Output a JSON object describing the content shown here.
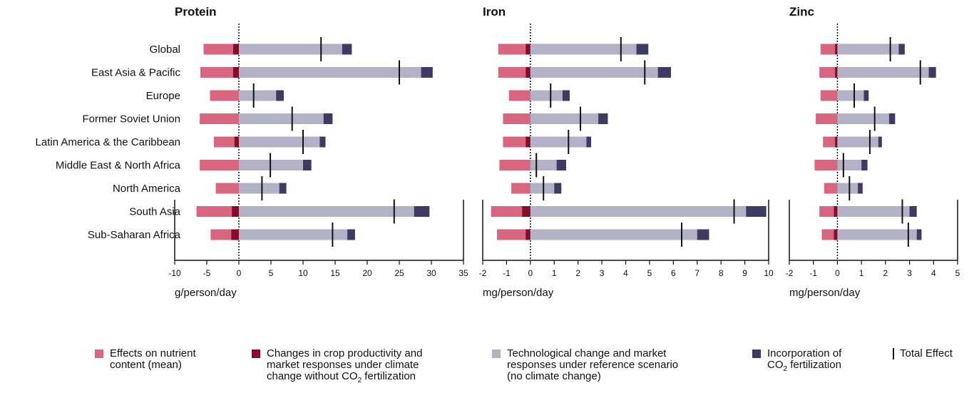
{
  "chart_data": {
    "type": "bar",
    "categories": [
      "Global",
      "East Asia & Pacific",
      "Europe",
      "Former Soviet Union",
      "Latin America & the Caribbean",
      "Middle East & North Africa",
      "North America",
      "South Asia",
      "Sub-Saharan Africa"
    ],
    "colors": {
      "nutrient_effect": "#d9667f",
      "crop_productivity": "#8b0a2a",
      "tech_change": "#b3b1c5",
      "co2": "#3d3a63",
      "total": "#111111"
    },
    "panels": [
      {
        "title": "Protein",
        "xlabel": "g/person/day",
        "xlim": [
          -10,
          35
        ],
        "ticks": [
          -10,
          -5,
          0,
          5,
          10,
          15,
          20,
          25,
          30,
          35
        ],
        "series": [
          {
            "name": "Effects on nutrient content (mean)",
            "values": [
              -4.6,
              -5.1,
              -4.5,
              -6.1,
              -3.2,
              -6.1,
              -3.6,
              -5.5,
              -3.2
            ]
          },
          {
            "name": "Changes in crop productivity and market responses under climate change without CO2 fertilization",
            "values": [
              -0.9,
              -0.9,
              0,
              0,
              -0.7,
              0,
              0,
              -1.1,
              -1.2
            ]
          },
          {
            "name": "Technological change and market responses under reference scenario (no climate change)",
            "values": [
              16.1,
              28.4,
              5.8,
              13.2,
              12.6,
              10.0,
              6.3,
              27.3,
              16.9
            ]
          },
          {
            "name": "Incorporation of CO2 fertilization",
            "values": [
              1.5,
              1.8,
              1.2,
              1.4,
              0.9,
              1.3,
              1.1,
              2.4,
              1.2
            ]
          },
          {
            "name": "Total Effect",
            "values": [
              12.8,
              25.0,
              2.3,
              8.3,
              10.0,
              4.9,
              3.6,
              24.2,
              14.6
            ]
          }
        ]
      },
      {
        "title": "Iron",
        "xlabel": "mg/person/day",
        "xlim": [
          -2,
          10
        ],
        "ticks": [
          -2,
          -1,
          0,
          1,
          2,
          3,
          4,
          5,
          6,
          7,
          8,
          9,
          10
        ],
        "series": [
          {
            "name": "Effects on nutrient content (mean)",
            "values": [
              -1.15,
              -1.15,
              -0.9,
              -1.15,
              -0.95,
              -1.3,
              -0.8,
              -1.3,
              -1.2
            ]
          },
          {
            "name": "Changes in crop productivity and market responses under climate change without CO2 fertilization",
            "values": [
              -0.2,
              -0.2,
              0,
              0,
              -0.2,
              0,
              0,
              -0.35,
              -0.2
            ]
          },
          {
            "name": "Technological change and market responses under reference scenario (no climate change)",
            "values": [
              4.45,
              5.35,
              1.35,
              2.85,
              2.35,
              1.1,
              1.0,
              9.05,
              7.0
            ]
          },
          {
            "name": "Incorporation of CO2 fertilization",
            "values": [
              0.5,
              0.55,
              0.3,
              0.4,
              0.2,
              0.4,
              0.3,
              0.85,
              0.5
            ]
          },
          {
            "name": "Total Effect",
            "values": [
              3.8,
              4.8,
              0.85,
              2.1,
              1.6,
              0.25,
              0.55,
              8.55,
              6.35
            ]
          }
        ]
      },
      {
        "title": "Zinc",
        "xlabel": "mg/person/day",
        "xlim": [
          -2,
          5
        ],
        "ticks": [
          -2,
          -1,
          0,
          1,
          2,
          3,
          4,
          5
        ],
        "series": [
          {
            "name": "Effects on nutrient content (mean)",
            "values": [
              -0.6,
              -0.65,
              -0.7,
              -0.9,
              -0.5,
              -0.95,
              -0.55,
              -0.6,
              -0.5
            ]
          },
          {
            "name": "Changes in crop productivity and market responses under climate change without CO2 fertilization",
            "values": [
              -0.1,
              -0.1,
              0,
              0,
              -0.1,
              0,
              0,
              -0.15,
              -0.15
            ]
          },
          {
            "name": "Technological change and market responses under reference scenario (no climate change)",
            "values": [
              2.55,
              3.8,
              1.1,
              2.15,
              1.7,
              1.0,
              0.85,
              3.0,
              3.3
            ]
          },
          {
            "name": "Incorporation of CO2 fertilization",
            "values": [
              0.25,
              0.3,
              0.2,
              0.25,
              0.15,
              0.25,
              0.2,
              0.3,
              0.2
            ]
          },
          {
            "name": "Total Effect",
            "values": [
              2.2,
              3.45,
              0.7,
              1.55,
              1.35,
              0.25,
              0.5,
              2.7,
              2.95
            ]
          }
        ]
      }
    ]
  },
  "legend": {
    "items": [
      {
        "label": "Effects on nutrient\ncontent (mean)",
        "color": "#d9667f"
      },
      {
        "label": "Changes in crop productivity and\nmarket responses under climate\nchange without CO",
        "sub": "2",
        "after": " fertilization",
        "color": "#8b0a2a"
      },
      {
        "label": "Technological change and market\nresponses under reference scenario\n(no climate change)",
        "color": "#b3b1c5"
      },
      {
        "label": "Incorporation of\nCO",
        "sub": "2",
        "after": " fertilization",
        "color": "#3d3a63"
      },
      {
        "label": "Total Effect",
        "color": "#111111"
      }
    ]
  }
}
